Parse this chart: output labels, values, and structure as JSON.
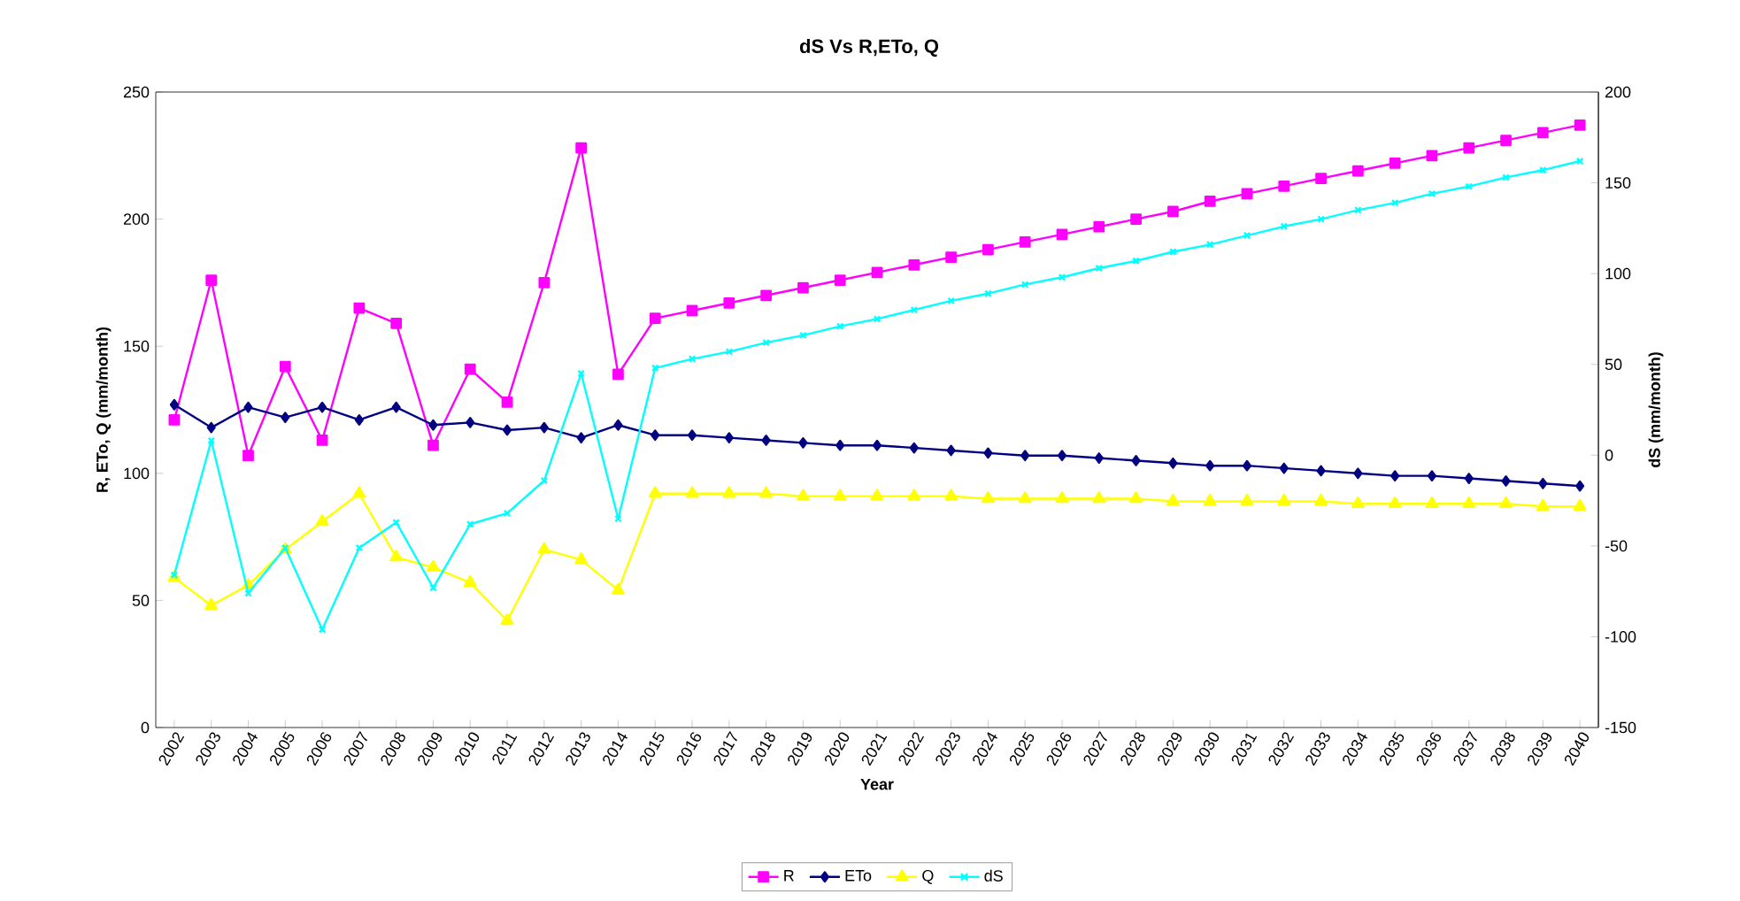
{
  "chart_data": {
    "type": "line",
    "title": "dS Vs R,ETo, Q",
    "xlabel": "Year",
    "ylabel": "R, ETo, Q (mm/month)",
    "y2label": "dS (mm/month)",
    "categories": [
      "2002",
      "2003",
      "2004",
      "2005",
      "2006",
      "2007",
      "2008",
      "2009",
      "2010",
      "2011",
      "2012",
      "2013",
      "2014",
      "2015",
      "2016",
      "2017",
      "2018",
      "2019",
      "2020",
      "2021",
      "2022",
      "2023",
      "2024",
      "2025",
      "2026",
      "2027",
      "2028",
      "2029",
      "2030",
      "2031",
      "2032",
      "2033",
      "2034",
      "2035",
      "2036",
      "2037",
      "2038",
      "2039",
      "2040"
    ],
    "series": [
      {
        "name": "R",
        "color": "#ff00ff",
        "marker": "square",
        "values": [
          121,
          176,
          107,
          142,
          113,
          165,
          159,
          111,
          141,
          128,
          175,
          228,
          139,
          161,
          164,
          167,
          170,
          173,
          176,
          179,
          182,
          185,
          188,
          191,
          194,
          197,
          200,
          203,
          207,
          210,
          213,
          216,
          219,
          222,
          225,
          228,
          231,
          234,
          237
        ]
      },
      {
        "name": "ETo",
        "color": "#000080",
        "marker": "diamond",
        "values": [
          127,
          118,
          126,
          122,
          126,
          121,
          126,
          119,
          120,
          117,
          118,
          114,
          119,
          115,
          115,
          114,
          113,
          112,
          111,
          111,
          110,
          109,
          108,
          107,
          107,
          106,
          105,
          104,
          103,
          103,
          102,
          101,
          100,
          99,
          99,
          98,
          97,
          96,
          95
        ]
      },
      {
        "name": "Q",
        "color": "#ffff00",
        "marker": "triangle",
        "values": [
          59,
          48,
          56,
          70,
          81,
          92,
          67,
          63,
          57,
          42,
          70,
          66,
          54,
          92,
          92,
          92,
          92,
          91,
          91,
          91,
          91,
          91,
          90,
          90,
          90,
          90,
          90,
          89,
          89,
          89,
          89,
          89,
          88,
          88,
          88,
          88,
          88,
          87,
          87
        ]
      },
      {
        "name": "dS",
        "color": "#00ffff",
        "marker": "cross",
        "axis": "y2",
        "values": [
          -66,
          8,
          -76,
          -51,
          -96,
          -51,
          -37,
          -73,
          -38,
          -32,
          -14,
          45,
          -35,
          48,
          53,
          57,
          62,
          66,
          71,
          75,
          80,
          85,
          89,
          94,
          98,
          103,
          107,
          112,
          116,
          121,
          126,
          130,
          135,
          139,
          144,
          148,
          153,
          157,
          162
        ]
      }
    ],
    "ylim": [
      0,
      250
    ],
    "yticks": [
      0,
      50,
      100,
      150,
      200,
      250
    ],
    "y2lim": [
      -150,
      200
    ],
    "y2ticks": [
      -150,
      -100,
      -50,
      0,
      50,
      100,
      150,
      200
    ],
    "grid": false,
    "legend": "bottom",
    "line_style": "solid"
  }
}
